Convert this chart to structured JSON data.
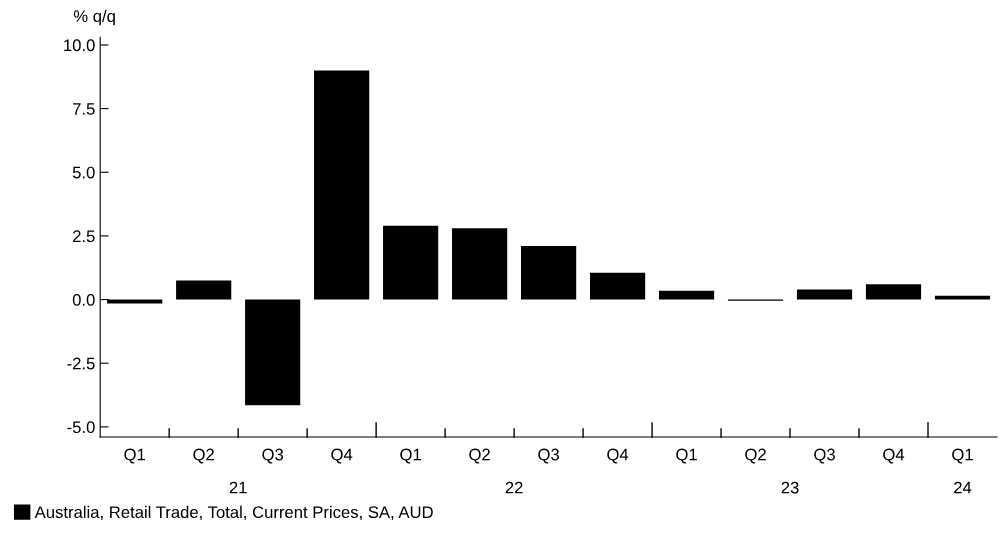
{
  "chart_data": {
    "type": "bar",
    "ylabel": "% q/q",
    "categories": [
      "Q1",
      "Q2",
      "Q3",
      "Q4",
      "Q1",
      "Q2",
      "Q3",
      "Q4",
      "Q1",
      "Q2",
      "Q3",
      "Q4",
      "Q1"
    ],
    "series": [
      {
        "name": "Australia, Retail Trade, Total, Current Prices, SA, AUD",
        "color": "#000000",
        "values": [
          -0.15,
          0.75,
          -4.15,
          9.0,
          2.9,
          2.8,
          2.1,
          1.05,
          0.35,
          -0.05,
          0.4,
          0.6,
          0.15
        ]
      }
    ],
    "annotations": [
      "21",
      "22",
      "23",
      "24"
    ],
    "ylim": [
      -5.4,
      10.3
    ],
    "yticks": [
      {
        "value": -5,
        "label": "-5.0"
      },
      {
        "value": -2.5,
        "label": "-2.5"
      },
      {
        "value": 0,
        "label": "0.0"
      },
      {
        "value": 2.5,
        "label": "2.5"
      },
      {
        "value": 5,
        "label": "5.0"
      },
      {
        "value": 7.5,
        "label": "7.5"
      },
      {
        "value": 10,
        "label": "10.0"
      }
    ],
    "grid": false,
    "legend": "bottom left"
  }
}
